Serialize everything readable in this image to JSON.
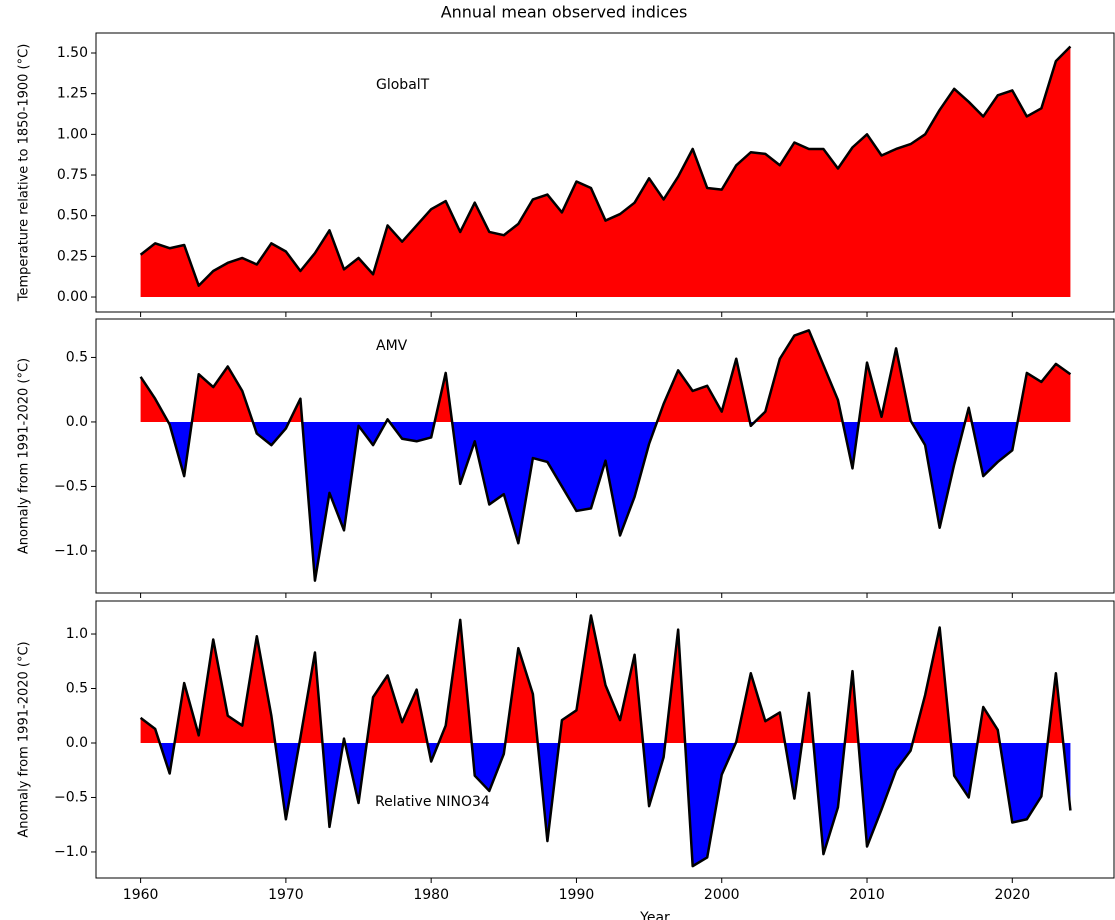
{
  "title": "Annual mean observed indices",
  "chart_data": [
    {
      "type": "area",
      "ylabel": "Temperature relative to 1850-1900 (°C)",
      "annotation": "GlobalT",
      "pos_color": "#ff0000",
      "neg_color": "#0000ff",
      "line_color": "#000000",
      "show_xticklabels": false,
      "x": [
        1960,
        1961,
        1962,
        1963,
        1964,
        1965,
        1966,
        1967,
        1968,
        1969,
        1970,
        1971,
        1972,
        1973,
        1974,
        1975,
        1976,
        1977,
        1978,
        1979,
        1980,
        1981,
        1982,
        1983,
        1984,
        1985,
        1986,
        1987,
        1988,
        1989,
        1990,
        1991,
        1992,
        1993,
        1994,
        1995,
        1996,
        1997,
        1998,
        1999,
        2000,
        2001,
        2002,
        2003,
        2004,
        2005,
        2006,
        2007,
        2008,
        2009,
        2010,
        2011,
        2012,
        2013,
        2014,
        2015,
        2016,
        2017,
        2018,
        2019,
        2020,
        2021,
        2022,
        2023,
        2024
      ],
      "values": [
        0.26,
        0.33,
        0.3,
        0.32,
        0.07,
        0.16,
        0.21,
        0.24,
        0.2,
        0.33,
        0.28,
        0.16,
        0.27,
        0.41,
        0.17,
        0.24,
        0.14,
        0.44,
        0.34,
        0.44,
        0.54,
        0.59,
        0.4,
        0.58,
        0.4,
        0.38,
        0.45,
        0.6,
        0.63,
        0.52,
        0.71,
        0.67,
        0.47,
        0.51,
        0.58,
        0.73,
        0.6,
        0.74,
        0.91,
        0.67,
        0.66,
        0.81,
        0.89,
        0.88,
        0.81,
        0.95,
        0.91,
        0.91,
        0.79,
        0.92,
        1.0,
        0.87,
        0.91,
        0.94,
        1.0,
        1.15,
        1.28,
        1.2,
        1.11,
        1.24,
        1.27,
        1.11,
        1.16,
        1.45,
        1.54
      ],
      "xlim": [
        1956.93,
        2027.0
      ],
      "xticks": [
        1960,
        1970,
        1980,
        1990,
        2000,
        2010,
        2020
      ],
      "ylim": [
        -0.092,
        1.623
      ],
      "yticks": [
        {
          "value": 0,
          "label": "0.00"
        },
        {
          "value": 0.25,
          "label": "0.25"
        },
        {
          "value": 0.5,
          "label": "0.50"
        },
        {
          "value": 0.75,
          "label": "0.75"
        },
        {
          "value": 1,
          "label": "1.00"
        },
        {
          "value": 1.25,
          "label": "1.25"
        },
        {
          "value": 1.5,
          "label": "1.50"
        }
      ]
    },
    {
      "type": "area",
      "ylabel": "Anomaly from 1991-2020 (°C)",
      "annotation": "AMV",
      "pos_color": "#ff0000",
      "neg_color": "#0000ff",
      "line_color": "#000000",
      "show_xticklabels": false,
      "x": [
        1960,
        1961,
        1962,
        1963,
        1964,
        1965,
        1966,
        1967,
        1968,
        1969,
        1970,
        1971,
        1972,
        1973,
        1974,
        1975,
        1976,
        1977,
        1978,
        1979,
        1980,
        1981,
        1982,
        1983,
        1984,
        1985,
        1986,
        1987,
        1988,
        1989,
        1990,
        1991,
        1992,
        1993,
        1994,
        1995,
        1996,
        1997,
        1998,
        1999,
        2000,
        2001,
        2002,
        2003,
        2004,
        2005,
        2006,
        2007,
        2008,
        2009,
        2010,
        2011,
        2012,
        2013,
        2014,
        2015,
        2016,
        2017,
        2018,
        2019,
        2020,
        2021,
        2022,
        2023,
        2024
      ],
      "values": [
        0.35,
        0.18,
        -0.02,
        -0.42,
        0.37,
        0.27,
        0.43,
        0.24,
        -0.09,
        -0.18,
        -0.05,
        0.18,
        -1.23,
        -0.55,
        -0.84,
        -0.03,
        -0.18,
        0.02,
        -0.13,
        -0.15,
        -0.12,
        0.38,
        -0.48,
        -0.15,
        -0.64,
        -0.56,
        -0.94,
        -0.28,
        -0.31,
        -0.5,
        -0.69,
        -0.67,
        -0.3,
        -0.88,
        -0.58,
        -0.17,
        0.14,
        0.4,
        0.24,
        0.28,
        0.08,
        0.49,
        -0.03,
        0.08,
        0.49,
        0.67,
        0.71,
        0.44,
        0.17,
        -0.36,
        0.46,
        0.04,
        0.57,
        0.01,
        -0.18,
        -0.82,
        -0.33,
        0.11,
        -0.42,
        -0.31,
        -0.22,
        0.38,
        0.31,
        0.45,
        0.37
      ],
      "xlim": [
        1956.93,
        2027.0
      ],
      "xticks": [
        1960,
        1970,
        1980,
        1990,
        2000,
        2010,
        2020
      ],
      "ylim": [
        -1.326,
        0.798
      ],
      "yticks": [
        {
          "value": -1,
          "label": "−1.0"
        },
        {
          "value": -0.5,
          "label": "−0.5"
        },
        {
          "value": 0,
          "label": "0.0"
        },
        {
          "value": 0.5,
          "label": "0.5"
        }
      ]
    },
    {
      "type": "area",
      "ylabel": "Anomaly from 1991-2020 (°C)",
      "annotation": "Relative NINO34",
      "xlabel": "Year",
      "pos_color": "#ff0000",
      "neg_color": "#0000ff",
      "line_color": "#000000",
      "show_xticklabels": true,
      "x": [
        1960,
        1961,
        1962,
        1963,
        1964,
        1965,
        1966,
        1967,
        1968,
        1969,
        1970,
        1971,
        1972,
        1973,
        1974,
        1975,
        1976,
        1977,
        1978,
        1979,
        1980,
        1981,
        1982,
        1983,
        1984,
        1985,
        1986,
        1987,
        1988,
        1989,
        1990,
        1991,
        1992,
        1993,
        1994,
        1995,
        1996,
        1997,
        1998,
        1999,
        2000,
        2001,
        2002,
        2003,
        2004,
        2005,
        2006,
        2007,
        2008,
        2009,
        2010,
        2011,
        2012,
        2013,
        2014,
        2015,
        2016,
        2017,
        2018,
        2019,
        2020,
        2021,
        2022,
        2023,
        2024
      ],
      "values": [
        0.23,
        0.13,
        -0.28,
        0.55,
        0.07,
        0.95,
        0.25,
        0.16,
        0.98,
        0.25,
        -0.7,
        0.05,
        0.83,
        -0.77,
        0.04,
        -0.55,
        0.42,
        0.62,
        0.19,
        0.49,
        -0.17,
        0.16,
        1.13,
        -0.3,
        -0.44,
        -0.1,
        0.87,
        0.45,
        -0.9,
        0.21,
        0.3,
        1.17,
        0.53,
        0.21,
        0.81,
        -0.58,
        -0.13,
        1.04,
        -1.13,
        -1.05,
        -0.29,
        0.01,
        0.64,
        0.2,
        0.28,
        -0.51,
        0.46,
        -1.02,
        -0.59,
        0.66,
        -0.95,
        -0.61,
        -0.25,
        -0.07,
        0.44,
        1.06,
        -0.3,
        -0.5,
        0.33,
        0.12,
        -0.73,
        -0.7,
        -0.49,
        0.64,
        -0.62
      ],
      "xlim": [
        1956.93,
        2027.0
      ],
      "xticks": [
        1960,
        1970,
        1980,
        1990,
        2000,
        2010,
        2020
      ],
      "ylim": [
        -1.239,
        1.303
      ],
      "yticks": [
        {
          "value": -1,
          "label": "−1.0"
        },
        {
          "value": -0.5,
          "label": "−0.5"
        },
        {
          "value": 0,
          "label": "0.0"
        },
        {
          "value": 0.5,
          "label": "0.5"
        },
        {
          "value": 1,
          "label": "1.0"
        }
      ]
    }
  ]
}
